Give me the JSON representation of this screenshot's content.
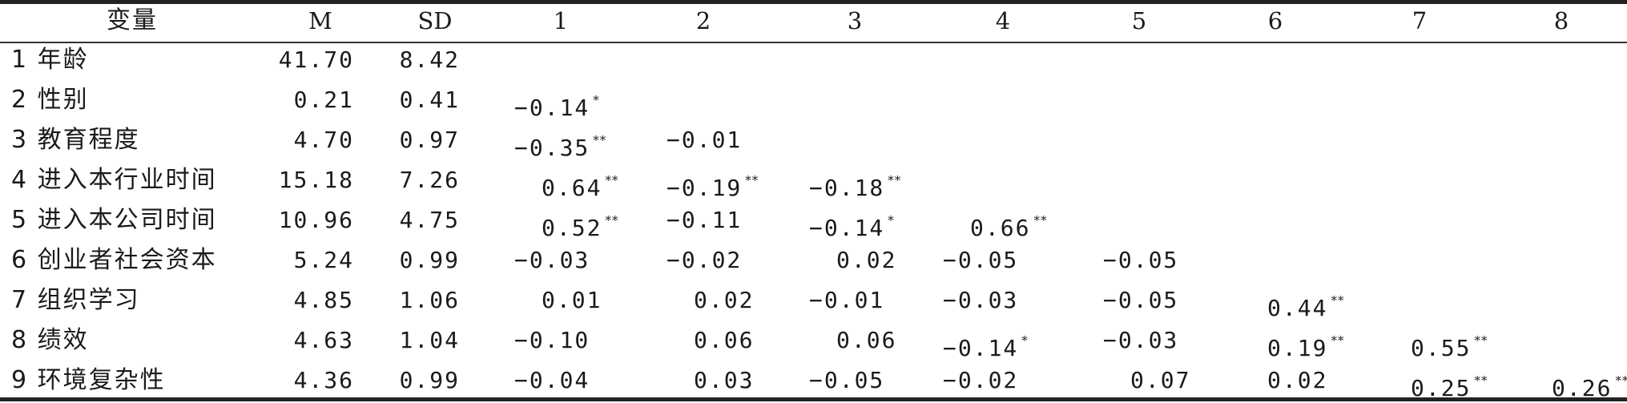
{
  "headers": [
    "变量",
    "M",
    "SD",
    "1",
    "2",
    "3",
    "4",
    "5",
    "6",
    "7",
    "8"
  ],
  "rows": [
    {
      "label": "1 年龄",
      "m": "41.70",
      "sd": "8.42",
      "corr": []
    },
    {
      "label": "2 性别",
      "m": "0.21",
      "sd": "0.41",
      "corr": [
        {
          "v": "−0.14",
          "s": "*"
        }
      ]
    },
    {
      "label": "3 教育程度",
      "m": "4.70",
      "sd": "0.97",
      "corr": [
        {
          "v": "−0.35",
          "s": "**"
        },
        {
          "v": "−0.01",
          "s": ""
        }
      ]
    },
    {
      "label": "4 进入本行业时间",
      "m": "15.18",
      "sd": "7.26",
      "corr": [
        {
          "v": "0.64",
          "s": "**"
        },
        {
          "v": "−0.19",
          "s": "**"
        },
        {
          "v": "−0.18",
          "s": "**"
        }
      ]
    },
    {
      "label": "5 进入本公司时间",
      "m": "10.96",
      "sd": "4.75",
      "corr": [
        {
          "v": "0.52",
          "s": "**"
        },
        {
          "v": "−0.11",
          "s": ""
        },
        {
          "v": "−0.14",
          "s": "*"
        },
        {
          "v": "0.66",
          "s": "**"
        }
      ]
    },
    {
      "label": "6 创业者社会资本",
      "m": "5.24",
      "sd": "0.99",
      "corr": [
        {
          "v": "−0.03",
          "s": ""
        },
        {
          "v": "−0.02",
          "s": ""
        },
        {
          "v": "0.02",
          "s": ""
        },
        {
          "v": "−0.05",
          "s": ""
        },
        {
          "v": "−0.05",
          "s": ""
        }
      ]
    },
    {
      "label": "7 组织学习",
      "m": "4.85",
      "sd": "1.06",
      "corr": [
        {
          "v": "0.01",
          "s": ""
        },
        {
          "v": "0.02",
          "s": ""
        },
        {
          "v": "−0.01",
          "s": ""
        },
        {
          "v": "−0.03",
          "s": ""
        },
        {
          "v": "−0.05",
          "s": ""
        },
        {
          "v": "0.44",
          "s": "**"
        }
      ]
    },
    {
      "label": "8 绩效",
      "m": "4.63",
      "sd": "1.04",
      "corr": [
        {
          "v": "−0.10",
          "s": ""
        },
        {
          "v": "0.06",
          "s": ""
        },
        {
          "v": "0.06",
          "s": ""
        },
        {
          "v": "−0.14",
          "s": "*"
        },
        {
          "v": "−0.03",
          "s": ""
        },
        {
          "v": "0.19",
          "s": "**"
        },
        {
          "v": "0.55",
          "s": "**"
        }
      ]
    },
    {
      "label": "9 环境复杂性",
      "m": "4.36",
      "sd": "0.99",
      "corr": [
        {
          "v": "−0.04",
          "s": ""
        },
        {
          "v": "0.03",
          "s": ""
        },
        {
          "v": "−0.05",
          "s": ""
        },
        {
          "v": "−0.02",
          "s": ""
        },
        {
          "v": "0.07",
          "s": ""
        },
        {
          "v": "0.02",
          "s": ""
        },
        {
          "v": "0.25",
          "s": "**"
        },
        {
          "v": "0.26",
          "s": "**"
        }
      ]
    }
  ]
}
